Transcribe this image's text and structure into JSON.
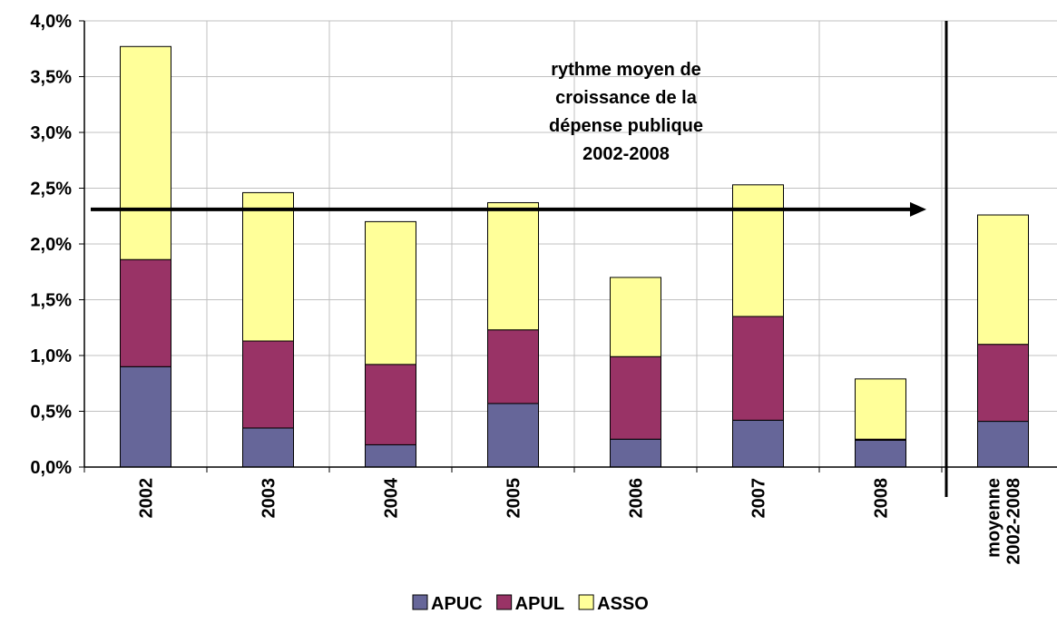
{
  "chart_data": {
    "type": "stacked_bar",
    "categories": [
      "2002",
      "2003",
      "2004",
      "2005",
      "2006",
      "2007",
      "2008",
      "moyenne 2002-2008"
    ],
    "series": [
      {
        "name": "APUC",
        "color": "#666699",
        "values": [
          0.9,
          0.35,
          0.2,
          0.57,
          0.25,
          0.42,
          0.24,
          0.41
        ]
      },
      {
        "name": "APUL",
        "color": "#993366",
        "values": [
          0.96,
          0.78,
          0.72,
          0.66,
          0.74,
          0.93,
          0.01,
          0.69
        ]
      },
      {
        "name": "ASSO",
        "color": "#FFFF99",
        "values": [
          1.91,
          1.33,
          1.28,
          1.14,
          0.71,
          1.18,
          0.54,
          1.16
        ]
      }
    ],
    "ylim": [
      0,
      4
    ],
    "yticks": [
      {
        "value": 0,
        "label": "0,0%"
      },
      {
        "value": 0.5,
        "label": "0,5%"
      },
      {
        "value": 1,
        "label": "1,0%"
      },
      {
        "value": 1.5,
        "label": "1,5%"
      },
      {
        "value": 2,
        "label": "2,0%"
      },
      {
        "value": 2.5,
        "label": "2,5%"
      },
      {
        "value": 3,
        "label": "3,0%"
      },
      {
        "value": 3.5,
        "label": "3,5%"
      },
      {
        "value": 4,
        "label": "4,0%"
      }
    ],
    "grid": true,
    "legend": "bottom",
    "annotation": {
      "lines": [
        "rythme moyen de",
        "croissance de la",
        "dépense publique",
        "2002-2008"
      ],
      "arrow_value": 2.31
    }
  }
}
